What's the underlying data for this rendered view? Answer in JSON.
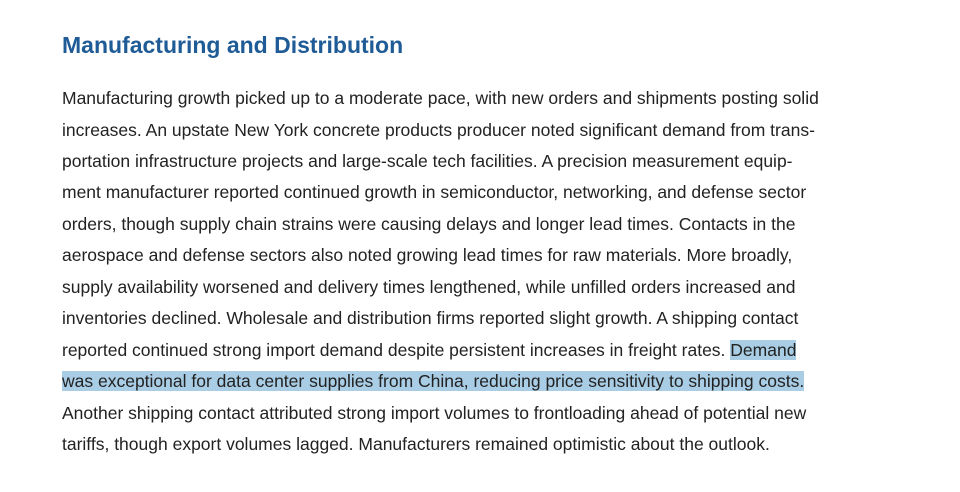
{
  "section": {
    "heading": "Manufacturing and Distribution",
    "lines": [
      {
        "text": "Manufacturing growth picked up to a moderate pace, with new orders and shipments posting solid"
      },
      {
        "text": "increases. An upstate New York concrete products producer noted significant demand from trans-"
      },
      {
        "text": "portation infrastructure projects and large-scale tech facilities. A precision measurement equip-"
      },
      {
        "text": "ment manufacturer reported continued growth in semiconductor, networking, and defense sector"
      },
      {
        "text": "orders, though supply chain strains were causing delays and longer lead times. Contacts in the"
      },
      {
        "text": "aerospace and defense sectors also noted growing lead times for raw materials. More broadly,"
      },
      {
        "text": "supply availability worsened and delivery times lengthened, while unfilled orders increased and"
      },
      {
        "text": "inventories declined. Wholesale and distribution firms reported slight growth. A shipping contact"
      },
      {
        "text": "reported continued strong import demand despite persistent increases in freight rates. ",
        "highlight": "Demand"
      },
      {
        "text": "",
        "highlight": "was exceptional for data center supplies from China, reducing price sensitivity to shipping costs."
      },
      {
        "text": "Another shipping contact attributed strong import volumes to frontloading ahead of potential new"
      },
      {
        "text": "tariffs, though export volumes lagged. Manufacturers remained optimistic about the outlook."
      }
    ]
  },
  "colors": {
    "heading": "#1f5b96",
    "body_text": "#222222",
    "selection_highlight": "#a9cde4"
  }
}
